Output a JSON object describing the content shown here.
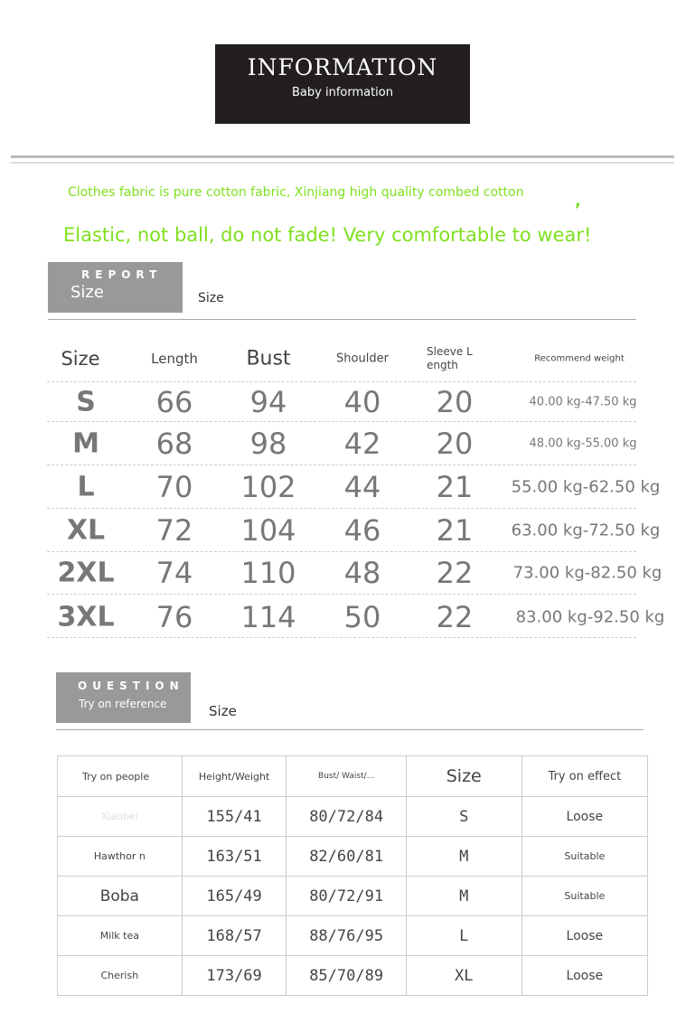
{
  "banner": {
    "title": "INFORMATION",
    "subtitle": "Baby information"
  },
  "fabric_line": "Clothes fabric is pure cotton fabric, Xinjiang high quality combed cotton",
  "comma": ",",
  "tagline": "Elastic, not ball, do not fade! Very comfortable to wear!",
  "report": {
    "tag_small": "REPORT",
    "tag_big": "Size",
    "side_label": "Size"
  },
  "size_table": {
    "headers": [
      "Size",
      "Length",
      "Bust",
      "Shoulder",
      "Sleeve L ength",
      "Recommend weight"
    ],
    "rows": [
      [
        "S",
        "66",
        "94",
        "40",
        "20",
        "40.00 kg-47.50 kg"
      ],
      [
        "M",
        "68",
        "98",
        "42",
        "20",
        "48.00 kg-55.00 kg"
      ],
      [
        "L",
        "70",
        "102",
        "44",
        "21",
        "55.00 kg-62.50 kg"
      ],
      [
        "XL",
        "72",
        "104",
        "46",
        "21",
        "63.00 kg-72.50 kg"
      ],
      [
        "2XL",
        "74",
        "110",
        "48",
        "22",
        "73.00 kg-82.50 kg"
      ],
      [
        "3XL",
        "76",
        "114",
        "50",
        "22",
        "83.00 kg-92.50 kg"
      ]
    ]
  },
  "question": {
    "tag_small": "OUESTION",
    "tag_big": "Try on reference",
    "side_label": "Size"
  },
  "tryon_table": {
    "headers": [
      "Try on people",
      "Height/Weight",
      "Bust/ Waist/...",
      "Size",
      "Try on effect"
    ],
    "rows": [
      [
        "Xiaobei",
        "155/41",
        "80/72/84",
        "S",
        "Loose"
      ],
      [
        "Hawthor n",
        "163/51",
        "82/60/81",
        "M",
        "Suitable"
      ],
      [
        "Boba",
        "165/49",
        "80/72/91",
        "M",
        "Suitable"
      ],
      [
        "Milk tea",
        "168/57",
        "88/76/95",
        "L",
        "Loose"
      ],
      [
        "Cherish",
        "173/69",
        "85/70/89",
        "XL",
        "Loose"
      ]
    ]
  }
}
